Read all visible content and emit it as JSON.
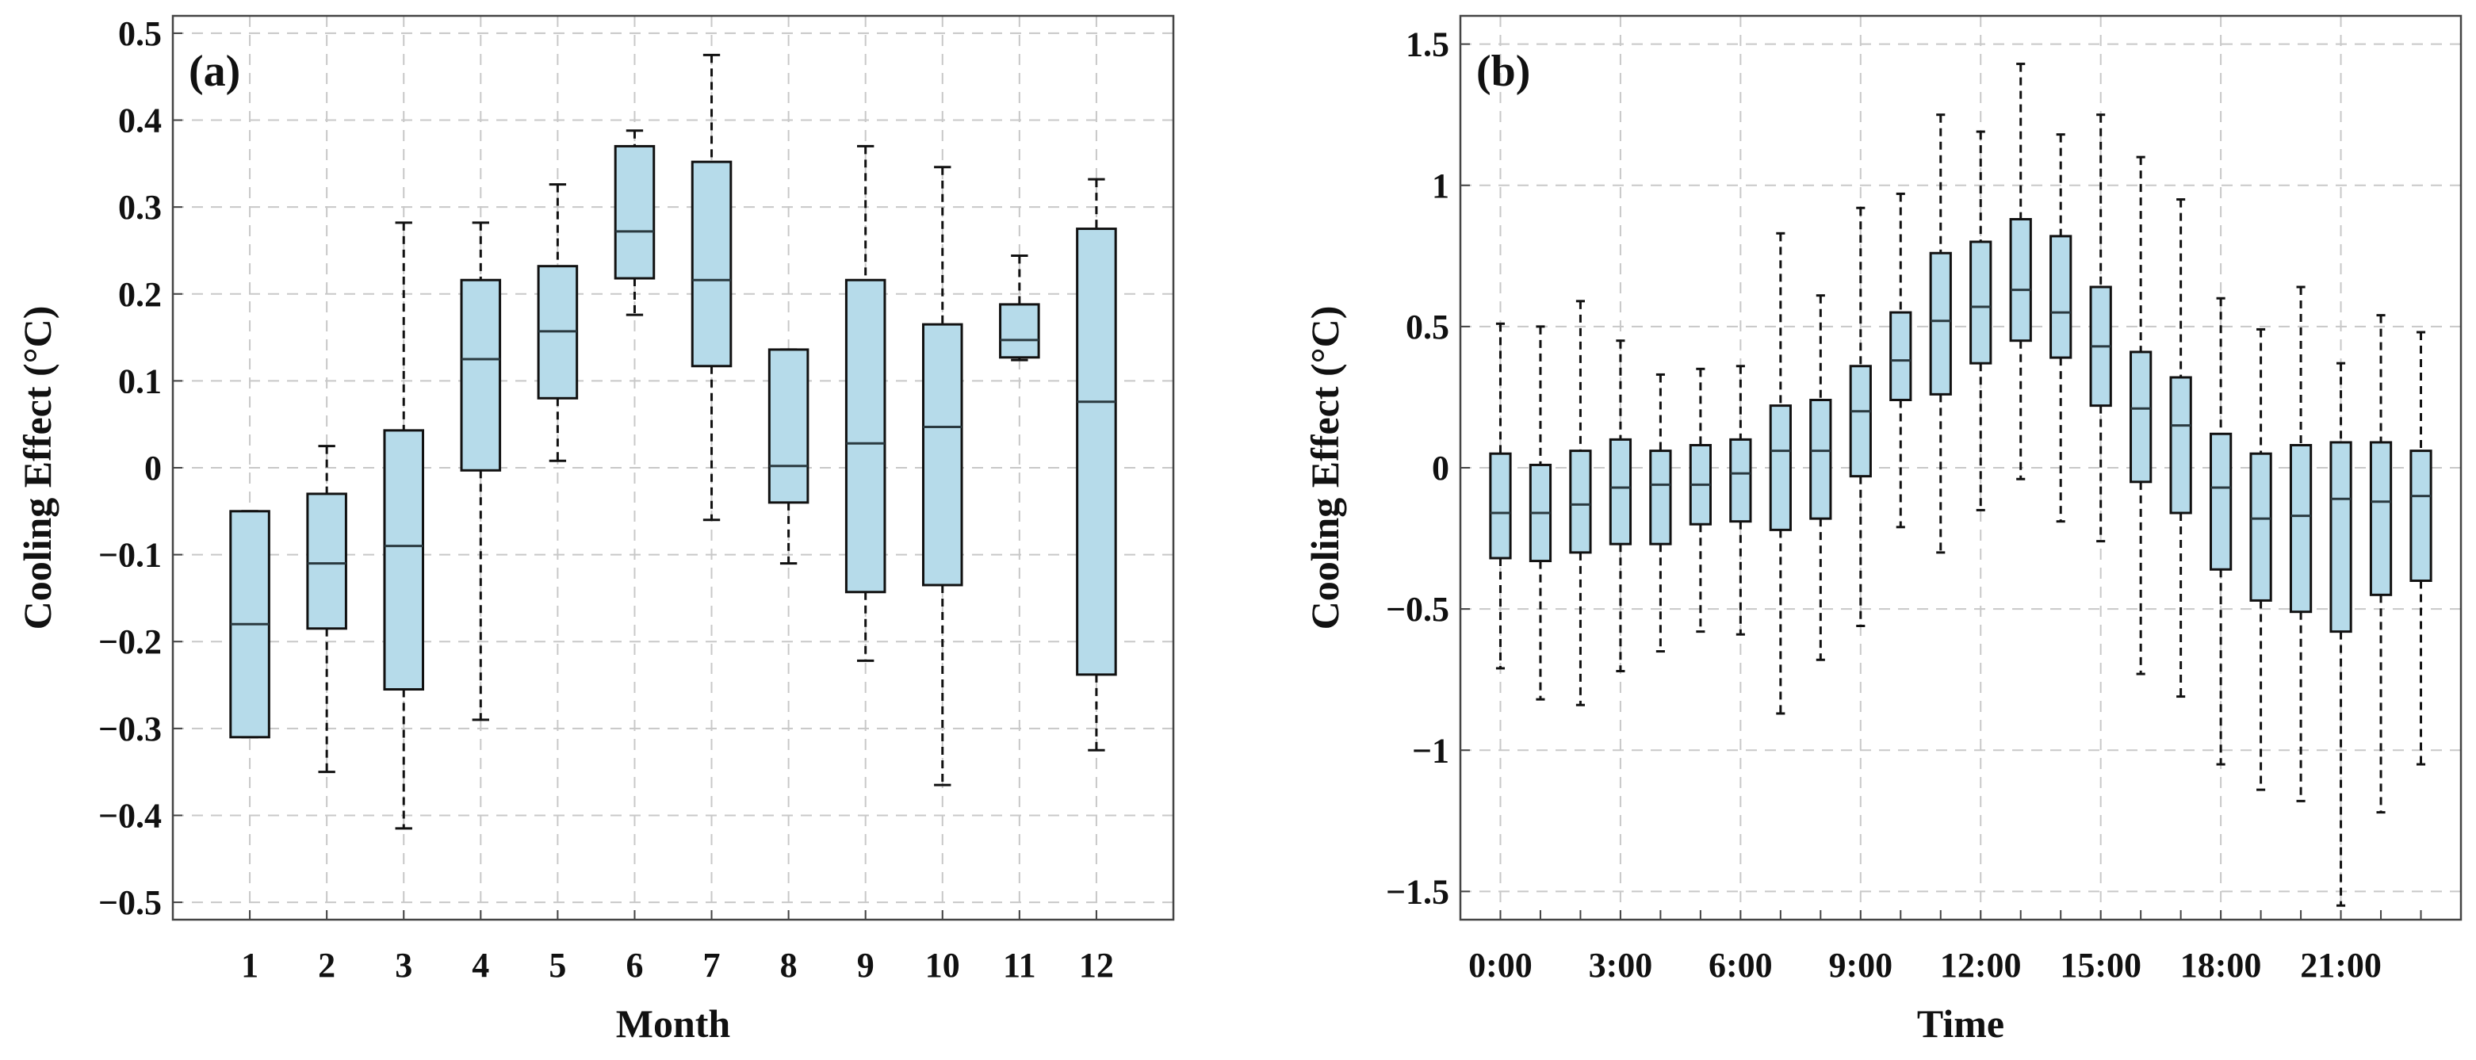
{
  "chart_data": [
    {
      "type": "box",
      "panel": "(a)",
      "xlabel": "Month",
      "ylabel": "Cooling Effect (°C)",
      "ylim": [
        -0.52,
        0.52
      ],
      "yticks": [
        -0.5,
        -0.4,
        -0.3,
        -0.2,
        -0.1,
        0,
        0.1,
        0.2,
        0.3,
        0.4,
        0.5
      ],
      "ytick_labels": [
        "−0.5",
        "−0.4",
        "−0.3",
        "−0.2",
        "−0.1",
        "0",
        "0.1",
        "0.2",
        "0.3",
        "0.4",
        "0.5"
      ],
      "categories": [
        "1",
        "2",
        "3",
        "4",
        "5",
        "6",
        "7",
        "8",
        "9",
        "10",
        "11",
        "12"
      ],
      "boxes": [
        {
          "whisker_low": -0.31,
          "q1": -0.31,
          "median": -0.18,
          "q3": -0.05,
          "whisker_high": -0.05
        },
        {
          "whisker_low": -0.35,
          "q1": -0.185,
          "median": -0.11,
          "q3": -0.03,
          "whisker_high": 0.025
        },
        {
          "whisker_low": -0.415,
          "q1": -0.255,
          "median": -0.09,
          "q3": 0.043,
          "whisker_high": 0.282
        },
        {
          "whisker_low": -0.29,
          "q1": -0.003,
          "median": 0.125,
          "q3": 0.216,
          "whisker_high": 0.282
        },
        {
          "whisker_low": 0.008,
          "q1": 0.08,
          "median": 0.157,
          "q3": 0.232,
          "whisker_high": 0.326
        },
        {
          "whisker_low": 0.176,
          "q1": 0.218,
          "median": 0.272,
          "q3": 0.37,
          "whisker_high": 0.388
        },
        {
          "whisker_low": -0.06,
          "q1": 0.117,
          "median": 0.216,
          "q3": 0.352,
          "whisker_high": 0.475
        },
        {
          "whisker_low": -0.11,
          "q1": -0.04,
          "median": 0.002,
          "q3": 0.136,
          "whisker_high": 0.136
        },
        {
          "whisker_low": -0.222,
          "q1": -0.143,
          "median": 0.028,
          "q3": 0.216,
          "whisker_high": 0.37
        },
        {
          "whisker_low": -0.365,
          "q1": -0.135,
          "median": 0.047,
          "q3": 0.165,
          "whisker_high": 0.346
        },
        {
          "whisker_low": 0.124,
          "q1": 0.127,
          "median": 0.147,
          "q3": 0.188,
          "whisker_high": 0.244
        },
        {
          "whisker_low": -0.325,
          "q1": -0.238,
          "median": 0.076,
          "q3": 0.275,
          "whisker_high": 0.332
        }
      ]
    },
    {
      "type": "box",
      "panel": "(b)",
      "xlabel": "Time",
      "ylabel": "Cooling Effect (°C)",
      "ylim": [
        -1.6,
        1.6
      ],
      "yticks": [
        -1.5,
        -1,
        -0.5,
        0,
        0.5,
        1,
        1.5
      ],
      "ytick_labels": [
        "−1.5",
        "−1",
        "−0.5",
        "0",
        "0.5",
        "1",
        "1.5"
      ],
      "categories": [
        "0:00",
        "1:00",
        "2:00",
        "3:00",
        "4:00",
        "5:00",
        "6:00",
        "7:00",
        "8:00",
        "9:00",
        "10:00",
        "11:00",
        "12:00",
        "13:00",
        "14:00",
        "15:00",
        "16:00",
        "17:00",
        "18:00",
        "19:00",
        "20:00",
        "21:00",
        "22:00",
        "23:00"
      ],
      "xtick_labels": [
        "0:00",
        "3:00",
        "6:00",
        "9:00",
        "12:00",
        "15:00",
        "18:00",
        "21:00"
      ],
      "boxes": [
        {
          "whisker_low": -0.71,
          "q1": -0.32,
          "median": -0.16,
          "q3": 0.05,
          "whisker_high": 0.51
        },
        {
          "whisker_low": -0.82,
          "q1": -0.33,
          "median": -0.16,
          "q3": 0.01,
          "whisker_high": 0.5
        },
        {
          "whisker_low": -0.84,
          "q1": -0.3,
          "median": -0.13,
          "q3": 0.06,
          "whisker_high": 0.59
        },
        {
          "whisker_low": -0.72,
          "q1": -0.27,
          "median": -0.07,
          "q3": 0.1,
          "whisker_high": 0.45
        },
        {
          "whisker_low": -0.65,
          "q1": -0.27,
          "median": -0.06,
          "q3": 0.06,
          "whisker_high": 0.33
        },
        {
          "whisker_low": -0.58,
          "q1": -0.2,
          "median": -0.06,
          "q3": 0.08,
          "whisker_high": 0.35
        },
        {
          "whisker_low": -0.59,
          "q1": -0.19,
          "median": -0.02,
          "q3": 0.1,
          "whisker_high": 0.36
        },
        {
          "whisker_low": -0.87,
          "q1": -0.22,
          "median": 0.06,
          "q3": 0.22,
          "whisker_high": 0.83
        },
        {
          "whisker_low": -0.68,
          "q1": -0.18,
          "median": 0.06,
          "q3": 0.24,
          "whisker_high": 0.61
        },
        {
          "whisker_low": -0.56,
          "q1": -0.03,
          "median": 0.2,
          "q3": 0.36,
          "whisker_high": 0.92
        },
        {
          "whisker_low": -0.21,
          "q1": 0.24,
          "median": 0.38,
          "q3": 0.55,
          "whisker_high": 0.97
        },
        {
          "whisker_low": -0.3,
          "q1": 0.26,
          "median": 0.52,
          "q3": 0.76,
          "whisker_high": 1.25
        },
        {
          "whisker_low": -0.15,
          "q1": 0.37,
          "median": 0.57,
          "q3": 0.8,
          "whisker_high": 1.19
        },
        {
          "whisker_low": -0.04,
          "q1": 0.45,
          "median": 0.63,
          "q3": 0.88,
          "whisker_high": 1.43
        },
        {
          "whisker_low": -0.19,
          "q1": 0.39,
          "median": 0.55,
          "q3": 0.82,
          "whisker_high": 1.18
        },
        {
          "whisker_low": -0.26,
          "q1": 0.22,
          "median": 0.43,
          "q3": 0.64,
          "whisker_high": 1.25
        },
        {
          "whisker_low": -0.73,
          "q1": -0.05,
          "median": 0.21,
          "q3": 0.41,
          "whisker_high": 1.1
        },
        {
          "whisker_low": -0.81,
          "q1": -0.16,
          "median": 0.15,
          "q3": 0.32,
          "whisker_high": 0.95
        },
        {
          "whisker_low": -1.05,
          "q1": -0.36,
          "median": -0.07,
          "q3": 0.12,
          "whisker_high": 0.6
        },
        {
          "whisker_low": -1.14,
          "q1": -0.47,
          "median": -0.18,
          "q3": 0.05,
          "whisker_high": 0.49
        },
        {
          "whisker_low": -1.18,
          "q1": -0.51,
          "median": -0.17,
          "q3": 0.08,
          "whisker_high": 0.64
        },
        {
          "whisker_low": -1.55,
          "q1": -0.58,
          "median": -0.11,
          "q3": 0.09,
          "whisker_high": 0.37
        },
        {
          "whisker_low": -1.22,
          "q1": -0.45,
          "median": -0.12,
          "q3": 0.09,
          "whisker_high": 0.54
        },
        {
          "whisker_low": -1.05,
          "q1": -0.4,
          "median": -0.1,
          "q3": 0.06,
          "whisker_high": 0.48
        }
      ]
    }
  ],
  "style": {
    "box_fill": "#b6dbea",
    "box_stroke": "#111111",
    "grid_color": "#c8c8c8",
    "axis_color": "#444444"
  }
}
